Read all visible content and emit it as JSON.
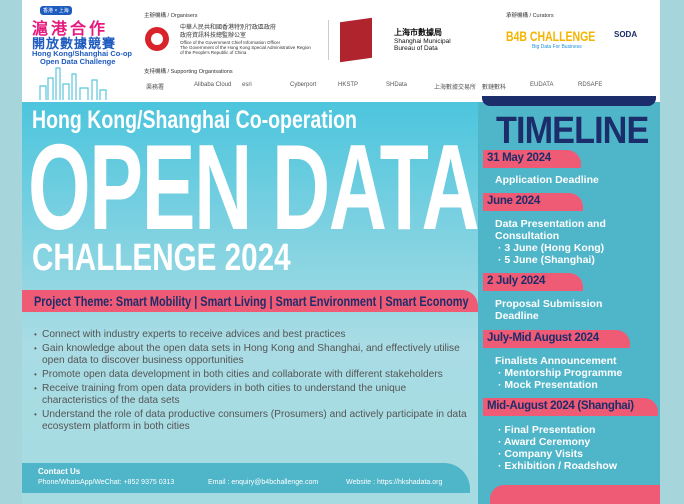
{
  "header": {
    "logo": {
      "badge": "香港 × 上海",
      "zh_line1": "滬港合作",
      "zh_line2": "開放數據競賽",
      "en_line1": "Hong Kong/Shanghai Co-op",
      "en_line2": "Open Data Challenge"
    },
    "organisers_label": "主辦機構 / Organisers",
    "ogcio": {
      "zh1": "中華人民共和國香港特別行政區政府",
      "zh2": "政府資訊科技總監辦公室",
      "en1": "Office of the Government Chief Information Officer",
      "en2": "The Government of the Hong Kong Special Administrative Region",
      "en3": "of the People's Republic of China"
    },
    "shanghai_bureau": {
      "zh": "上海市數據局",
      "en1": "Shanghai Municipal",
      "en2": "Bureau of Data"
    },
    "curators_label": "承辦機構 / Curators",
    "b4b": {
      "name": "B4B CHALLENGE",
      "tagline": "Big Data For Business"
    },
    "soda": {
      "name": "SODA"
    },
    "supporting_label": "支持機構 / Supporting Organisations",
    "supporters": [
      "渠務署",
      "Alibaba Cloud",
      "esri",
      "Cyberport",
      "HKSTP",
      "SHData",
      "上海數據交易所",
      "數鏈數科",
      "EUDATA",
      "RDSAFE"
    ]
  },
  "hero": {
    "line1": "Hong Kong/Shanghai Co-operation",
    "line2": "OPEN DATA",
    "line3": "CHALLENGE 2024"
  },
  "theme": "Project Theme: Smart Mobility | Smart Living | Smart Environment | Smart Economy",
  "bullets": [
    "Connect with industry experts to receive advices and best practices",
    "Gain knowledge about the open data sets in Hong Kong and Shanghai, and effectively utilise open data to discover business opportunities",
    "Promote open data development in both cities and collaborate with different stakeholders",
    "Receive training from open data providers in both cities to understand the unique characteristics of the data sets",
    "Understand the role of data productive consumers (Prosumers) and actively participate in data ecosystem platform in both cities"
  ],
  "contact": {
    "title": "Contact Us",
    "phone": "Phone/WhatsApp/WeChat: +852 9375 0313",
    "email": "Email : enquiry@b4bchallenge.com",
    "website": "Website : https://hkshadata.org"
  },
  "timeline": {
    "title": "TIMELINE",
    "entries": [
      {
        "date": "31 May 2024",
        "lines": [
          "Application Deadline"
        ]
      },
      {
        "date": "June 2024",
        "lines": [
          "Data Presentation and",
          "Consultation",
          "·  3 June (Hong Kong)",
          "·  5 June (Shanghai)"
        ]
      },
      {
        "date": "2 July 2024",
        "lines": [
          "Proposal Submission",
          "Deadline"
        ]
      },
      {
        "date": "July-Mid August 2024",
        "lines": [
          "Finalists Announcement",
          "·  Mentorship Programme",
          "·  Mock Presentation"
        ]
      },
      {
        "date": "Mid-August 2024 (Shanghai)",
        "lines": [
          "·  Final Presentation",
          "·  Award Ceremony",
          "·  Company Visits",
          "·  Exhibition / Roadshow"
        ]
      }
    ]
  },
  "colors": {
    "pink": "#ef5a74",
    "navy": "#1b2d6a",
    "teal": "#4fb5c8",
    "magenta": "#e6197d",
    "blue": "#1e5bbf"
  }
}
